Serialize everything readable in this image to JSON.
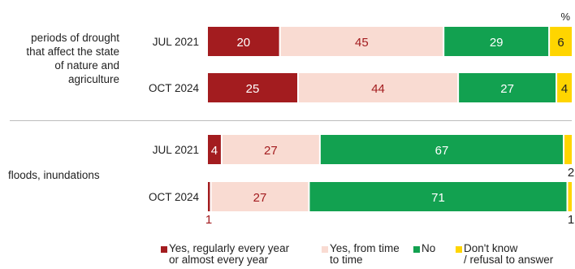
{
  "chart_data": {
    "type": "bar",
    "orientation": "horizontal",
    "stacked": true,
    "unit_label": "%",
    "xlim": [
      0,
      100
    ],
    "series": [
      {
        "name": "Yes, regularly every year or almost every year",
        "color": "#a31c1f",
        "label_color": "#ffffff"
      },
      {
        "name": "Yes, from time to time",
        "color": "#f9dbd2",
        "label_color": "#a31c1f"
      },
      {
        "name": "No",
        "color": "#12a150",
        "label_color": "#ffffff"
      },
      {
        "name": "Don't know / refusal to answer",
        "color": "#ffd500",
        "label_color": "#222222"
      }
    ],
    "groups": [
      {
        "label": "periods of drought that affect the state of nature and agriculture",
        "label_lines": [
          "periods of drought",
          "that affect the state",
          "of nature and",
          "agriculture"
        ],
        "bars": [
          {
            "category": "JUL 2021",
            "values": [
              20,
              45,
              29,
              6
            ]
          },
          {
            "category": "OCT 2024",
            "values": [
              25,
              44,
              27,
              4
            ]
          }
        ]
      },
      {
        "label": "floods, inundations",
        "label_lines": [
          "floods, inundations"
        ],
        "bars": [
          {
            "category": "JUL 2021",
            "values": [
              4,
              27,
              67,
              2
            ]
          },
          {
            "category": "OCT 2024",
            "values": [
              1,
              27,
              71,
              1
            ]
          }
        ]
      }
    ],
    "legend": [
      {
        "lines": [
          "Yes, regularly every year",
          "or almost every year"
        ],
        "color": "#a31c1f"
      },
      {
        "lines": [
          "Yes, from time",
          "to time"
        ],
        "color": "#f9dbd2"
      },
      {
        "lines": [
          "No"
        ],
        "color": "#12a150"
      },
      {
        "lines": [
          "Don't know",
          "/ refusal to answer"
        ],
        "color": "#ffd500"
      }
    ],
    "legend_position": "bottom",
    "grid": false
  }
}
